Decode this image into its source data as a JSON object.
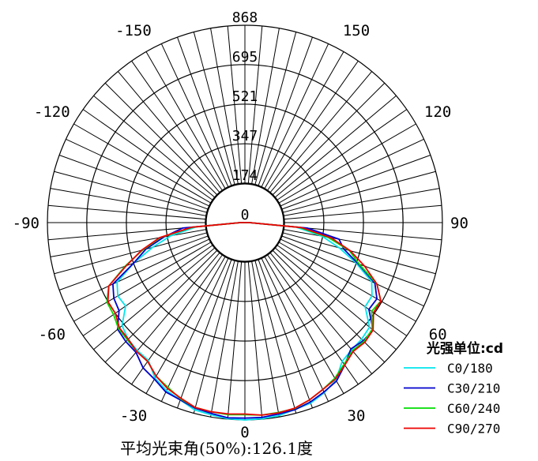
{
  "chart_data": {
    "type": "polar",
    "angle_labels": [
      {
        "deg": 180,
        "label": "0"
      },
      {
        "deg": 150,
        "label": "150"
      },
      {
        "deg": -150,
        "label": "-150"
      },
      {
        "deg": 120,
        "label": "120"
      },
      {
        "deg": -120,
        "label": "-120"
      },
      {
        "deg": 90,
        "label": "90"
      },
      {
        "deg": -90,
        "label": "-90"
      },
      {
        "deg": 60,
        "label": "60"
      },
      {
        "deg": -60,
        "label": "-60"
      },
      {
        "deg": 30,
        "label": "30"
      },
      {
        "deg": -30,
        "label": "-30"
      },
      {
        "deg": 0,
        "label": "0"
      }
    ],
    "radial_ticks": [
      0,
      174,
      347,
      521,
      695,
      868
    ],
    "r_max": 868,
    "angle_step": 5,
    "legend_title": "光强单位:cd",
    "legend_position": "bottom-right",
    "series": [
      {
        "name": "C0/180",
        "color": "#00e5ee",
        "points": [
          [
            0,
            868
          ],
          [
            5,
            866
          ],
          [
            10,
            862
          ],
          [
            15,
            850
          ],
          [
            20,
            845
          ],
          [
            25,
            825
          ],
          [
            30,
            800
          ],
          [
            35,
            745
          ],
          [
            40,
            730
          ],
          [
            45,
            725
          ],
          [
            50,
            715
          ],
          [
            55,
            645
          ],
          [
            60,
            645
          ],
          [
            65,
            615
          ],
          [
            70,
            520
          ],
          [
            75,
            430
          ],
          [
            80,
            345
          ],
          [
            85,
            225
          ],
          [
            90,
            20
          ],
          [
            -5,
            866
          ],
          [
            -10,
            858
          ],
          [
            -15,
            853
          ],
          [
            -20,
            830
          ],
          [
            -25,
            815
          ],
          [
            -30,
            790
          ],
          [
            -35,
            740
          ],
          [
            -40,
            735
          ],
          [
            -45,
            725
          ],
          [
            -50,
            705
          ],
          [
            -55,
            640
          ],
          [
            -60,
            645
          ],
          [
            -65,
            620
          ],
          [
            -70,
            520
          ],
          [
            -75,
            420
          ],
          [
            -80,
            330
          ],
          [
            -85,
            215
          ],
          [
            -90,
            20
          ]
        ]
      },
      {
        "name": "C30/210",
        "color": "#0000cc",
        "points": [
          [
            0,
            860
          ],
          [
            5,
            860
          ],
          [
            10,
            855
          ],
          [
            15,
            852
          ],
          [
            20,
            840
          ],
          [
            25,
            822
          ],
          [
            30,
            805
          ],
          [
            35,
            765
          ],
          [
            40,
            725
          ],
          [
            45,
            735
          ],
          [
            50,
            735
          ],
          [
            55,
            665
          ],
          [
            60,
            670
          ],
          [
            65,
            630
          ],
          [
            70,
            530
          ],
          [
            75,
            450
          ],
          [
            80,
            420
          ],
          [
            85,
            275
          ],
          [
            90,
            20
          ],
          [
            -5,
            862
          ],
          [
            -10,
            852
          ],
          [
            -15,
            845
          ],
          [
            -20,
            830
          ],
          [
            -25,
            822
          ],
          [
            -30,
            795
          ],
          [
            -35,
            780
          ],
          [
            -40,
            745
          ],
          [
            -45,
            740
          ],
          [
            -50,
            730
          ],
          [
            -55,
            675
          ],
          [
            -60,
            665
          ],
          [
            -65,
            640
          ],
          [
            -70,
            520
          ],
          [
            -75,
            450
          ],
          [
            -80,
            360
          ],
          [
            -85,
            275
          ],
          [
            -90,
            20
          ]
        ]
      },
      {
        "name": "C60/240",
        "color": "#00dd00",
        "points": [
          [
            0,
            845
          ],
          [
            5,
            850
          ],
          [
            10,
            848
          ],
          [
            15,
            847
          ],
          [
            20,
            830
          ],
          [
            25,
            810
          ],
          [
            30,
            790
          ],
          [
            35,
            760
          ],
          [
            40,
            735
          ],
          [
            45,
            740
          ],
          [
            50,
            730
          ],
          [
            55,
            680
          ],
          [
            60,
            690
          ],
          [
            65,
            640
          ],
          [
            70,
            535
          ],
          [
            75,
            475
          ],
          [
            80,
            370
          ],
          [
            85,
            240
          ],
          [
            90,
            20
          ],
          [
            -5,
            848
          ],
          [
            -10,
            845
          ],
          [
            -15,
            842
          ],
          [
            -20,
            825
          ],
          [
            -25,
            800
          ],
          [
            -30,
            780
          ],
          [
            -35,
            745
          ],
          [
            -40,
            740
          ],
          [
            -45,
            730
          ],
          [
            -50,
            725
          ],
          [
            -55,
            705
          ],
          [
            -60,
            700
          ],
          [
            -65,
            660
          ],
          [
            -70,
            560
          ],
          [
            -75,
            465
          ],
          [
            -80,
            375
          ],
          [
            -85,
            230
          ],
          [
            -90,
            20
          ]
        ]
      },
      {
        "name": "C90/270",
        "color": "#ee0000",
        "points": [
          [
            0,
            842
          ],
          [
            5,
            850
          ],
          [
            10,
            850
          ],
          [
            15,
            845
          ],
          [
            20,
            830
          ],
          [
            25,
            810
          ],
          [
            30,
            795
          ],
          [
            35,
            765
          ],
          [
            40,
            740
          ],
          [
            45,
            745
          ],
          [
            50,
            735
          ],
          [
            55,
            690
          ],
          [
            60,
            690
          ],
          [
            65,
            640
          ],
          [
            70,
            560
          ],
          [
            75,
            480
          ],
          [
            80,
            385
          ],
          [
            85,
            250
          ],
          [
            90,
            20
          ],
          [
            -5,
            845
          ],
          [
            -10,
            845
          ],
          [
            -15,
            842
          ],
          [
            -20,
            822
          ],
          [
            -25,
            805
          ],
          [
            -30,
            780
          ],
          [
            -35,
            745
          ],
          [
            -40,
            740
          ],
          [
            -45,
            725
          ],
          [
            -50,
            720
          ],
          [
            -55,
            695
          ],
          [
            -60,
            695
          ],
          [
            -65,
            660
          ],
          [
            -70,
            555
          ],
          [
            -75,
            470
          ],
          [
            -80,
            380
          ],
          [
            -85,
            235
          ],
          [
            -90,
            20
          ]
        ]
      }
    ],
    "footer": "平均光束角(50%):126.1度"
  }
}
